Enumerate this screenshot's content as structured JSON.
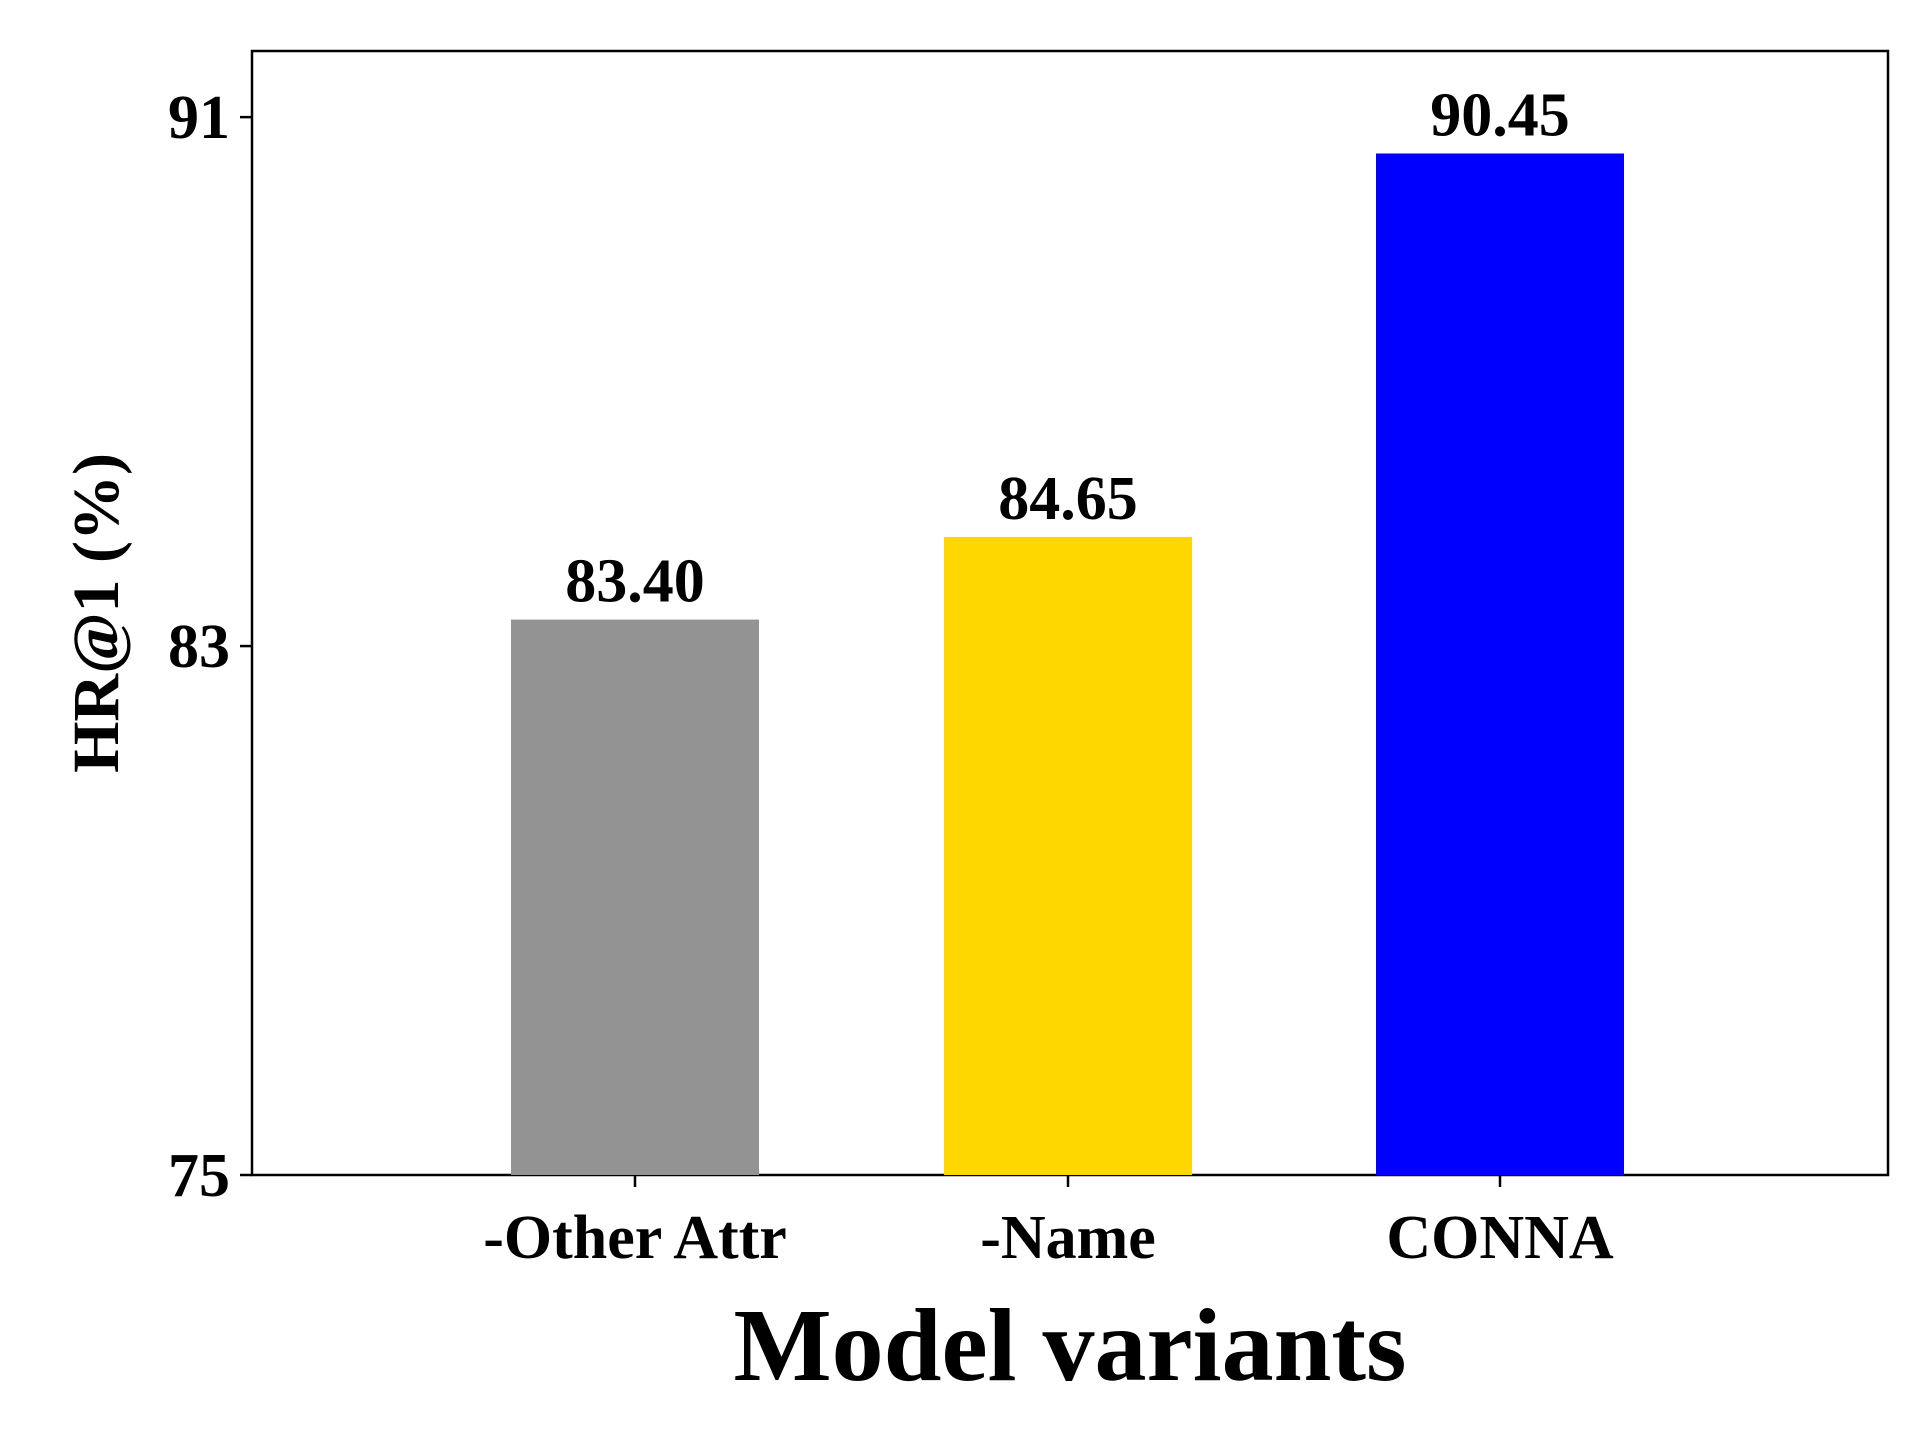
{
  "chart_data": {
    "type": "bar",
    "categories": [
      "-Other Attr",
      "-Name",
      "CONNA"
    ],
    "values": [
      83.4,
      84.65,
      90.45
    ],
    "value_labels": [
      "83.40",
      "84.65",
      "90.45"
    ],
    "colors": [
      "#939393",
      "#FFD700",
      "#0000FF"
    ],
    "title": "",
    "xlabel": "Model variants",
    "ylabel": "HR@1 (%)",
    "ylim": [
      75,
      92
    ],
    "yticks": [
      75,
      83,
      91
    ],
    "ytick_labels": [
      "75",
      "83",
      "91"
    ],
    "grid": false,
    "legend": "none"
  }
}
